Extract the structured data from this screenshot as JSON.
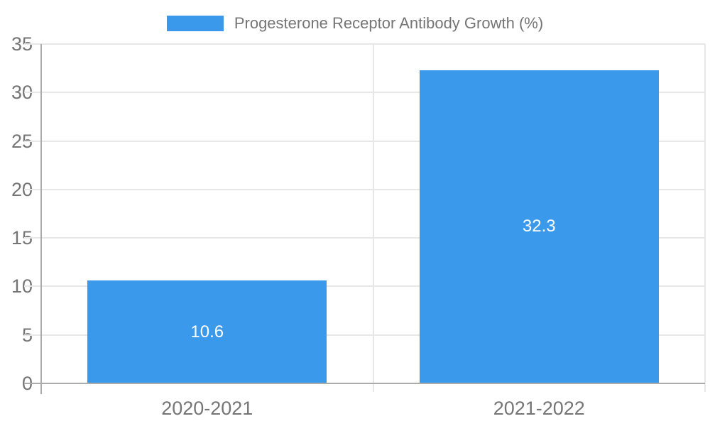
{
  "legend": {
    "label": "Progesterone Receptor Antibody Growth (%)"
  },
  "chart_data": {
    "type": "bar",
    "title": "Progesterone Receptor Antibody Growth (%)",
    "categories": [
      "2020-2021",
      "2021-2022"
    ],
    "values": [
      10.6,
      32.3
    ],
    "value_labels": [
      "10.6",
      "32.3"
    ],
    "xlabel": "",
    "ylabel": "",
    "ylim": [
      0,
      35
    ],
    "yticks": [
      0,
      5,
      10,
      15,
      20,
      25,
      30,
      35
    ],
    "grid": true,
    "legend_position": "top-center"
  },
  "colors": {
    "bar": "#3b99ec",
    "text": "#757575",
    "gridline": "#e7e7e7",
    "axis_line": "#ababab",
    "value_label": "#ffffff",
    "background": "#ffffff"
  }
}
